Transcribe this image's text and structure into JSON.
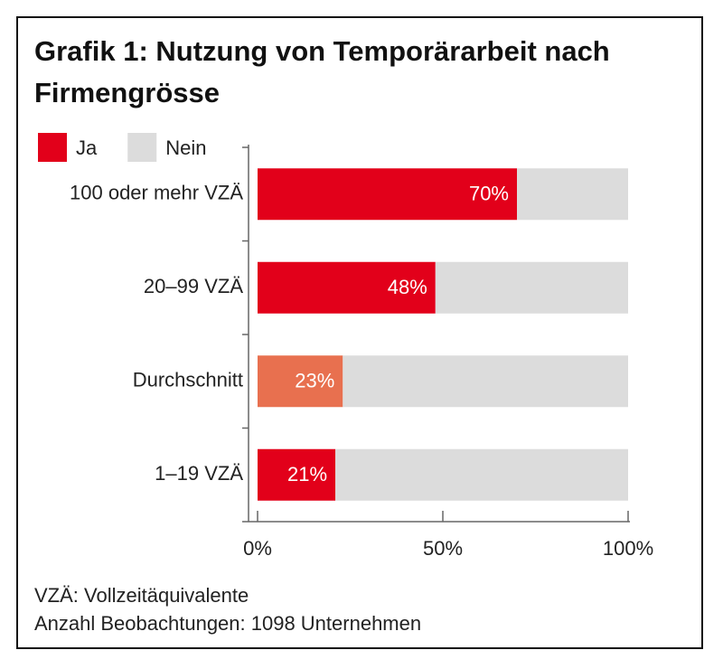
{
  "chart_data": {
    "type": "stacked_barh",
    "title": "Grafik 1: Nutzung von Temporärarbeit nach Firmengrösse",
    "categories": [
      "100 oder mehr VZÄ",
      "20–99 VZÄ",
      "Durchschnitt",
      "1–19 VZÄ"
    ],
    "series": [
      {
        "name": "Ja",
        "color": "#e2001a",
        "colors": [
          "#e2001a",
          "#e2001a",
          "#e8704f",
          "#e2001a"
        ],
        "values": [
          70,
          48,
          23,
          21
        ],
        "value_labels": [
          "70%",
          "48%",
          "23%",
          "21%"
        ]
      },
      {
        "name": "Nein",
        "color": "#dcdcdc",
        "values": [
          30,
          52,
          77,
          79
        ]
      }
    ],
    "xlim": [
      0,
      100
    ],
    "xticks": [
      {
        "value": 0,
        "label": "0%"
      },
      {
        "value": 50,
        "label": "50%"
      },
      {
        "value": 100,
        "label": "100%"
      }
    ],
    "legend": "top-left",
    "notes": [
      "VZÄ: Vollzeitäquivalente",
      "Anzahl Beobachtungen: 1098 Unternehmen"
    ]
  }
}
